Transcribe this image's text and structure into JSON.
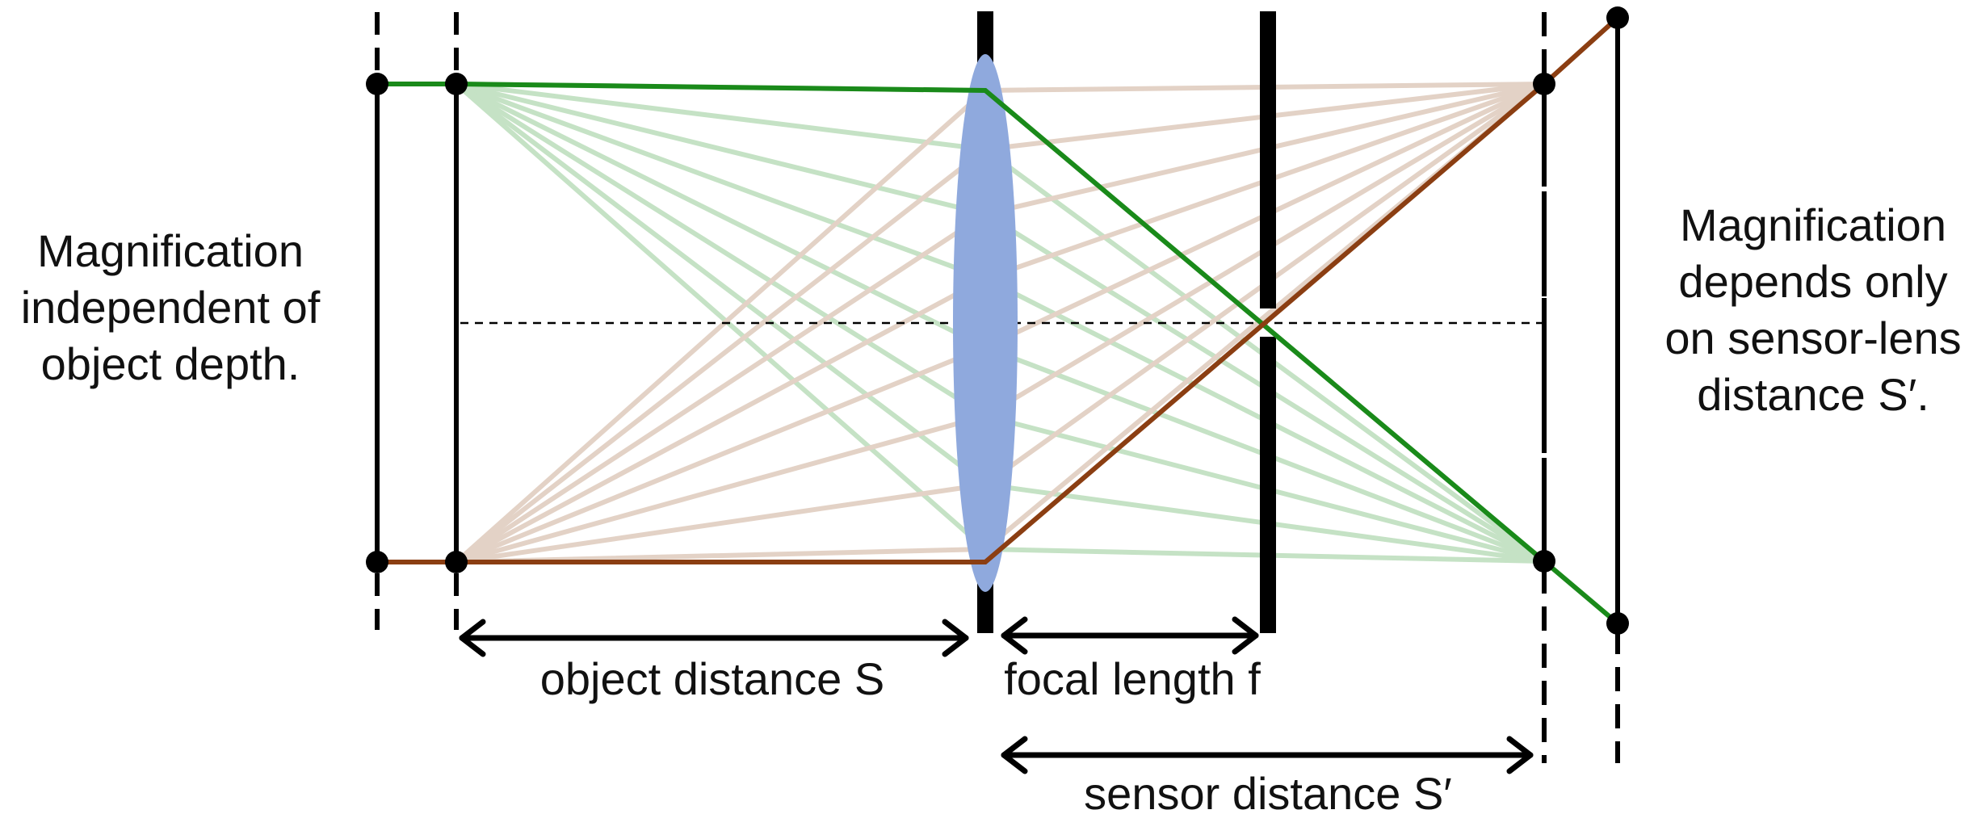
{
  "labels": {
    "left_note": [
      "Magnification",
      "independent of",
      "object depth."
    ],
    "right_note": [
      "Magnification",
      "depends only",
      "on sensor-lens",
      "distance S′."
    ],
    "object_distance": "object distance S",
    "focal_length": "focal length f",
    "sensor_distance": "sensor distance S′"
  },
  "colors": {
    "green_ray": "#1a8a1a",
    "brown_ray": "#8b3e12",
    "lens": "#8fa9dd",
    "faint_green": "#c5e2c5",
    "faint_brown": "#e3d2c6",
    "line": "#000000"
  }
}
